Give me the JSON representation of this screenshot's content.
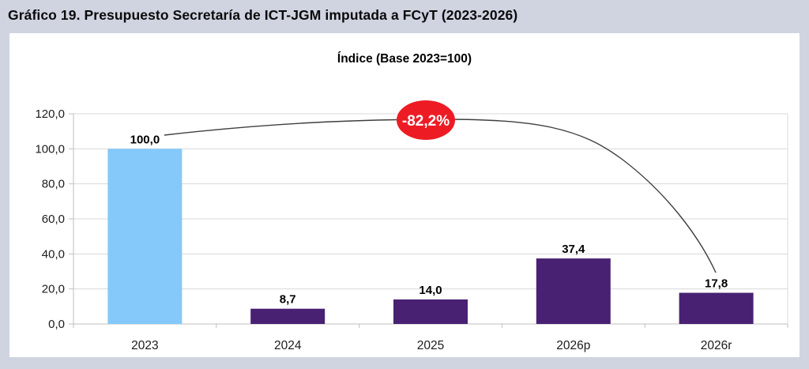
{
  "window": {
    "background_color": "#d0d4e1"
  },
  "figure": {
    "title": "Gráfico 19. Presupuesto Secretaría de ICT-JGM imputada a FCyT (2023-2026)"
  },
  "chart_data": {
    "type": "bar",
    "title": "Índice (Base 2023=100)",
    "categories": [
      "2023",
      "2024",
      "2025",
      "2026p",
      "2026r"
    ],
    "values": [
      100.0,
      8.7,
      14.0,
      37.4,
      17.8
    ],
    "value_labels": [
      "100,0",
      "8,7",
      "14,0",
      "37,4",
      "17,8"
    ],
    "bar_colors": [
      "#84C9F9",
      "#482173",
      "#482173",
      "#482173",
      "#482173"
    ],
    "ylim": [
      0,
      120
    ],
    "ytick_values": [
      0,
      20,
      40,
      60,
      80,
      100,
      120
    ],
    "ytick_labels": [
      "0,0",
      "20,0",
      "40,0",
      "60,0",
      "80,0",
      "100,0",
      "120,0"
    ],
    "grid": true,
    "legend": "none",
    "gridline_color": "#d9d9d9",
    "axis_color": "#bfbfbf",
    "annotation": {
      "label": "-82,2%",
      "shape": "ellipse",
      "fill_color": "#ED1C24",
      "text_color": "#ffffff"
    },
    "trend_line": {
      "from_category": "2023",
      "to_category": "2026r",
      "color": "#3f3f3f"
    }
  }
}
